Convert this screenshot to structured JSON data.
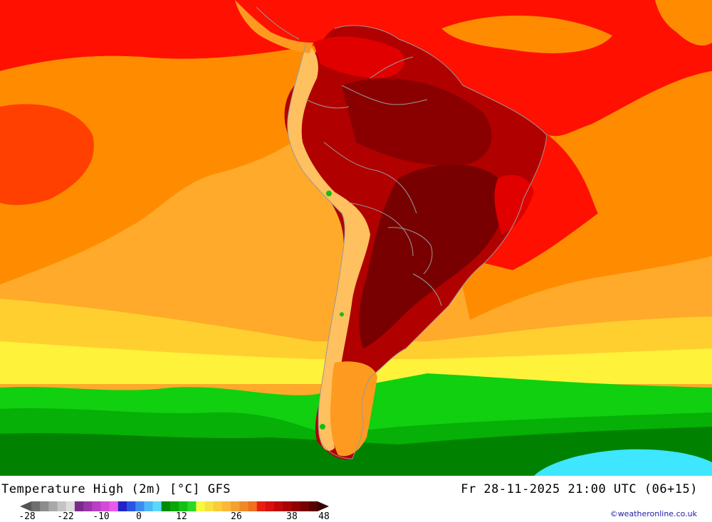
{
  "header": {
    "title": "Temperature High (2m) [°C] GFS",
    "valid_time": "Fr 28-11-2025 21:00 UTC (06+15)"
  },
  "credit": "©weatheronline.co.uk",
  "legend": {
    "ticks": [
      "-28",
      "-22",
      "-10",
      "0",
      "12",
      "26",
      "38",
      "48"
    ],
    "colors": [
      "#6e6e6e",
      "#8c8c8c",
      "#a8a8a8",
      "#c4c4c4",
      "#dcdcdc",
      "#7a2a8a",
      "#9a35a8",
      "#b840c4",
      "#d24ad8",
      "#e85ae8",
      "#2222c8",
      "#2a55e0",
      "#3c8cf0",
      "#4cb8f8",
      "#5ad8fa",
      "#058a05",
      "#0aa50a",
      "#14c014",
      "#2ad82a",
      "#f8f840",
      "#f8e040",
      "#f8cc3a",
      "#f8b838",
      "#f5a030",
      "#f08a28",
      "#ee7020",
      "#e62010",
      "#d81010",
      "#c00808",
      "#a80404",
      "#900202",
      "#780000",
      "#5a0000"
    ],
    "high_color": "#3a0000",
    "low_color": "#555555"
  },
  "map": {
    "palette": {
      "ocean_north": "#ff1000",
      "ocean_orange": "#ff8c00",
      "ocean_light_orange": "#ffaa2a",
      "ocean_yellow": "#ffcf30",
      "ocean_bright_yellow": "#fff23a",
      "ocean_green": "#10d010",
      "ocean_mid_green": "#06b006",
      "ocean_dark_green": "#008200",
      "ocean_cyan": "#3ee6ff",
      "land_hot": "#b00000",
      "land_very_hot": "#780000",
      "land_red": "#e00000",
      "andes": "#ffc060",
      "border_line": "#999999"
    }
  }
}
